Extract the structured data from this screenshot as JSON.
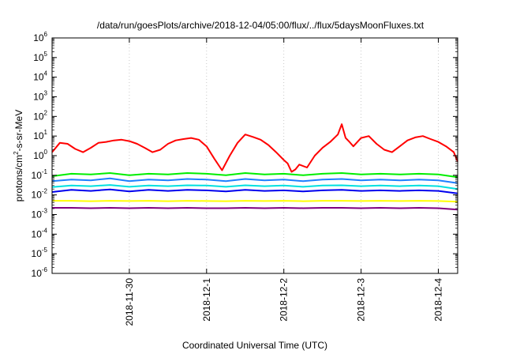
{
  "chart_data": {
    "type": "line",
    "title": "/data/run/goesPlots/archive/2018-12-04/05:00/flux/../flux/5daysMoonFluxes.txt",
    "xlabel": "Coordinated Universal Time (UTC)",
    "ylabel": {
      "prefix": "protons/cm",
      "sup": "2",
      "suffix": "-s-sr-MeV"
    },
    "yscale": "log",
    "ylim": [
      1e-06,
      1000000.0
    ],
    "xlim": [
      0,
      5.25
    ],
    "grid": true,
    "legend": "none",
    "y_ticks": [
      {
        "base": "10",
        "exp": "-6",
        "value": 1e-06
      },
      {
        "base": "10",
        "exp": "-5",
        "value": 1e-05
      },
      {
        "base": "10",
        "exp": "-4",
        "value": 0.0001
      },
      {
        "base": "10",
        "exp": "-3",
        "value": 0.001
      },
      {
        "base": "10",
        "exp": "-2",
        "value": 0.01
      },
      {
        "base": "10",
        "exp": "-1",
        "value": 0.1
      },
      {
        "base": "10",
        "exp": "0",
        "value": 1
      },
      {
        "base": "10",
        "exp": "1",
        "value": 10
      },
      {
        "base": "10",
        "exp": "2",
        "value": 100
      },
      {
        "base": "10",
        "exp": "3",
        "value": 1000
      },
      {
        "base": "10",
        "exp": "4",
        "value": 10000
      },
      {
        "base": "10",
        "exp": "5",
        "value": 100000
      },
      {
        "base": "10",
        "exp": "6",
        "value": 1000000
      }
    ],
    "x_ticks": [
      {
        "label": "2018-11-30",
        "value": 1.0
      },
      {
        "label": "2018-12-1",
        "value": 2.0
      },
      {
        "label": "2018-12-2",
        "value": 3.0
      },
      {
        "label": "2018-12-3",
        "value": 4.0
      },
      {
        "label": "2018-12-4",
        "value": 5.0
      }
    ],
    "series": [
      {
        "color": "#ff0000",
        "x": [
          0.0,
          0.1,
          0.2,
          0.3,
          0.4,
          0.5,
          0.6,
          0.7,
          0.8,
          0.9,
          1.0,
          1.1,
          1.2,
          1.3,
          1.4,
          1.5,
          1.6,
          1.7,
          1.8,
          1.9,
          2.0,
          2.1,
          2.2,
          2.3,
          2.4,
          2.5,
          2.6,
          2.7,
          2.8,
          2.9,
          3.0,
          3.05,
          3.1,
          3.15,
          3.2,
          3.3,
          3.4,
          3.5,
          3.6,
          3.7,
          3.75,
          3.8,
          3.85,
          3.9,
          4.0,
          4.1,
          4.2,
          4.3,
          4.4,
          4.5,
          4.6,
          4.7,
          4.8,
          4.9,
          5.0,
          5.1,
          5.2,
          5.25
        ],
        "y": [
          1.5,
          4.5,
          4.0,
          2.2,
          1.5,
          2.5,
          4.5,
          5.0,
          6.0,
          6.5,
          5.5,
          4.0,
          2.5,
          1.5,
          2.0,
          4.0,
          6.0,
          7.0,
          8.0,
          6.5,
          3.0,
          0.7,
          0.18,
          1.0,
          4.5,
          12.0,
          9.0,
          6.5,
          3.5,
          1.5,
          0.6,
          0.4,
          0.15,
          0.2,
          0.35,
          0.25,
          1.0,
          2.5,
          5.0,
          12.0,
          40.0,
          8.0,
          5.0,
          3.0,
          8.0,
          10.0,
          4.0,
          2.0,
          1.5,
          3.0,
          6.0,
          8.5,
          10.0,
          7.0,
          5.0,
          3.0,
          1.5,
          0.5
        ]
      },
      {
        "color": "#00ee00",
        "x": [
          0.0,
          0.25,
          0.5,
          0.75,
          1.0,
          1.25,
          1.5,
          1.75,
          2.0,
          2.25,
          2.5,
          2.75,
          3.0,
          3.25,
          3.5,
          3.75,
          4.0,
          4.25,
          4.5,
          4.75,
          5.0,
          5.25
        ],
        "y": [
          0.09,
          0.12,
          0.11,
          0.13,
          0.1,
          0.12,
          0.11,
          0.13,
          0.12,
          0.1,
          0.13,
          0.11,
          0.12,
          0.1,
          0.12,
          0.13,
          0.11,
          0.12,
          0.11,
          0.12,
          0.11,
          0.08
        ]
      },
      {
        "color": "#1e7fff",
        "x": [
          0.0,
          0.25,
          0.5,
          0.75,
          1.0,
          1.25,
          1.5,
          1.75,
          2.0,
          2.25,
          2.5,
          2.75,
          3.0,
          3.25,
          3.5,
          3.75,
          4.0,
          4.25,
          4.5,
          4.75,
          5.0,
          5.25
        ],
        "y": [
          0.05,
          0.06,
          0.055,
          0.07,
          0.05,
          0.06,
          0.055,
          0.065,
          0.06,
          0.05,
          0.065,
          0.055,
          0.06,
          0.05,
          0.06,
          0.065,
          0.055,
          0.06,
          0.055,
          0.06,
          0.055,
          0.04
        ]
      },
      {
        "color": "#00e0e0",
        "x": [
          0.0,
          0.25,
          0.5,
          0.75,
          1.0,
          1.25,
          1.5,
          1.75,
          2.0,
          2.25,
          2.5,
          2.75,
          3.0,
          3.25,
          3.5,
          3.75,
          4.0,
          4.25,
          4.5,
          4.75,
          5.0,
          5.25
        ],
        "y": [
          0.025,
          0.03,
          0.028,
          0.032,
          0.026,
          0.03,
          0.028,
          0.031,
          0.03,
          0.026,
          0.031,
          0.028,
          0.03,
          0.026,
          0.03,
          0.031,
          0.028,
          0.03,
          0.028,
          0.03,
          0.028,
          0.02
        ]
      },
      {
        "color": "#0000ee",
        "x": [
          0.0,
          0.25,
          0.5,
          0.75,
          1.0,
          1.25,
          1.5,
          1.75,
          2.0,
          2.25,
          2.5,
          2.75,
          3.0,
          3.25,
          3.5,
          3.75,
          4.0,
          4.25,
          4.5,
          4.75,
          5.0,
          5.25
        ],
        "y": [
          0.014,
          0.018,
          0.016,
          0.019,
          0.015,
          0.018,
          0.016,
          0.018,
          0.017,
          0.015,
          0.018,
          0.016,
          0.017,
          0.015,
          0.017,
          0.018,
          0.016,
          0.017,
          0.016,
          0.017,
          0.016,
          0.012
        ]
      },
      {
        "color": "#ffff00",
        "x": [
          0.0,
          0.25,
          0.5,
          0.75,
          1.0,
          1.25,
          1.5,
          1.75,
          2.0,
          2.25,
          2.5,
          2.75,
          3.0,
          3.25,
          3.5,
          3.75,
          4.0,
          4.25,
          4.5,
          4.75,
          5.0,
          5.25
        ],
        "y": [
          0.005,
          0.005,
          0.0048,
          0.005,
          0.0049,
          0.005,
          0.0048,
          0.005,
          0.0049,
          0.0048,
          0.005,
          0.0049,
          0.005,
          0.0048,
          0.005,
          0.005,
          0.0049,
          0.005,
          0.0049,
          0.005,
          0.0049,
          0.0045
        ]
      },
      {
        "color": "#800080",
        "x": [
          0.0,
          0.25,
          0.5,
          0.75,
          1.0,
          1.25,
          1.5,
          1.75,
          2.0,
          2.25,
          2.5,
          2.75,
          3.0,
          3.25,
          3.5,
          3.75,
          4.0,
          4.25,
          4.5,
          4.75,
          5.0,
          5.25
        ],
        "y": [
          0.0022,
          0.0022,
          0.0021,
          0.0022,
          0.0021,
          0.0022,
          0.0021,
          0.0022,
          0.0021,
          0.0021,
          0.0022,
          0.0021,
          0.0022,
          0.0021,
          0.0022,
          0.0022,
          0.0021,
          0.0022,
          0.0021,
          0.0022,
          0.0021,
          0.0018
        ]
      }
    ]
  }
}
